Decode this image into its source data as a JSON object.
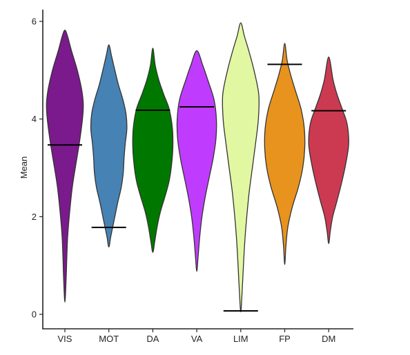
{
  "chart_data": {
    "type": "violin",
    "title": "",
    "xlabel": "",
    "ylabel": "Mean",
    "ylim": [
      -0.2,
      6.2
    ],
    "yticks": [
      0,
      2,
      4,
      6
    ],
    "grid": false,
    "legend": "none",
    "categories": [
      "VIS",
      "MOT",
      "DA",
      "VA",
      "LIM",
      "FP",
      "DM"
    ],
    "series": [
      {
        "category": "VIS",
        "color": "#7B1A8C",
        "marker": 3.47,
        "min": 0.25,
        "max": 5.82,
        "profile": [
          [
            0.25,
            0.0
          ],
          [
            0.7,
            0.06
          ],
          [
            1.2,
            0.1
          ],
          [
            1.6,
            0.14
          ],
          [
            2.1,
            0.24
          ],
          [
            2.6,
            0.37
          ],
          [
            3.0,
            0.52
          ],
          [
            3.5,
            0.72
          ],
          [
            4.0,
            0.88
          ],
          [
            4.3,
            0.92
          ],
          [
            4.6,
            0.84
          ],
          [
            5.0,
            0.62
          ],
          [
            5.4,
            0.33
          ],
          [
            5.7,
            0.13
          ],
          [
            5.82,
            0.0
          ]
        ]
      },
      {
        "category": "MOT",
        "color": "#4682B4",
        "marker": 1.78,
        "min": 1.38,
        "max": 5.52,
        "profile": [
          [
            1.38,
            0.0
          ],
          [
            1.6,
            0.1
          ],
          [
            2.0,
            0.3
          ],
          [
            2.3,
            0.45
          ],
          [
            2.6,
            0.62
          ],
          [
            2.9,
            0.72
          ],
          [
            3.2,
            0.76
          ],
          [
            3.5,
            0.82
          ],
          [
            3.8,
            0.9
          ],
          [
            4.1,
            0.86
          ],
          [
            4.4,
            0.7
          ],
          [
            4.7,
            0.48
          ],
          [
            5.0,
            0.3
          ],
          [
            5.3,
            0.13
          ],
          [
            5.52,
            0.0
          ]
        ]
      },
      {
        "category": "DA",
        "color": "#007800",
        "marker": 4.18,
        "min": 1.27,
        "max": 5.45,
        "profile": [
          [
            1.27,
            0.0
          ],
          [
            1.5,
            0.1
          ],
          [
            1.8,
            0.22
          ],
          [
            2.1,
            0.38
          ],
          [
            2.4,
            0.6
          ],
          [
            2.7,
            0.8
          ],
          [
            3.0,
            0.92
          ],
          [
            3.4,
            1.0
          ],
          [
            3.8,
            0.98
          ],
          [
            4.2,
            0.82
          ],
          [
            4.5,
            0.55
          ],
          [
            4.8,
            0.3
          ],
          [
            5.1,
            0.12
          ],
          [
            5.45,
            0.0
          ]
        ]
      },
      {
        "category": "VA",
        "color": "#BF3CFF",
        "marker": 4.25,
        "min": 0.88,
        "max": 5.4,
        "profile": [
          [
            0.88,
            0.0
          ],
          [
            1.2,
            0.07
          ],
          [
            1.6,
            0.15
          ],
          [
            2.0,
            0.26
          ],
          [
            2.4,
            0.42
          ],
          [
            2.8,
            0.62
          ],
          [
            3.2,
            0.82
          ],
          [
            3.6,
            0.96
          ],
          [
            4.0,
            0.98
          ],
          [
            4.4,
            0.86
          ],
          [
            4.8,
            0.55
          ],
          [
            5.1,
            0.3
          ],
          [
            5.4,
            0.0
          ]
        ]
      },
      {
        "category": "LIM",
        "color": "#E2F7A2",
        "marker": 0.07,
        "min": 0.05,
        "max": 5.97,
        "profile": [
          [
            0.05,
            0.0
          ],
          [
            0.4,
            0.06
          ],
          [
            0.8,
            0.11
          ],
          [
            1.2,
            0.16
          ],
          [
            1.6,
            0.22
          ],
          [
            2.0,
            0.3
          ],
          [
            2.5,
            0.42
          ],
          [
            3.0,
            0.58
          ],
          [
            3.5,
            0.74
          ],
          [
            4.0,
            0.88
          ],
          [
            4.5,
            0.9
          ],
          [
            5.0,
            0.66
          ],
          [
            5.4,
            0.4
          ],
          [
            5.7,
            0.18
          ],
          [
            5.97,
            0.0
          ]
        ]
      },
      {
        "category": "FP",
        "color": "#E8931E",
        "marker": 5.12,
        "min": 1.02,
        "max": 5.55,
        "profile": [
          [
            1.02,
            0.0
          ],
          [
            1.4,
            0.06
          ],
          [
            1.8,
            0.16
          ],
          [
            2.2,
            0.38
          ],
          [
            2.6,
            0.68
          ],
          [
            3.0,
            0.9
          ],
          [
            3.4,
            1.0
          ],
          [
            3.8,
            0.98
          ],
          [
            4.2,
            0.82
          ],
          [
            4.6,
            0.52
          ],
          [
            4.9,
            0.3
          ],
          [
            5.2,
            0.12
          ],
          [
            5.55,
            0.0
          ]
        ]
      },
      {
        "category": "DM",
        "color": "#CC3A52",
        "marker": 4.17,
        "min": 1.45,
        "max": 5.27,
        "profile": [
          [
            1.45,
            0.0
          ],
          [
            1.7,
            0.08
          ],
          [
            2.0,
            0.2
          ],
          [
            2.3,
            0.4
          ],
          [
            2.7,
            0.65
          ],
          [
            3.1,
            0.86
          ],
          [
            3.5,
            1.0
          ],
          [
            3.9,
            0.92
          ],
          [
            4.2,
            0.68
          ],
          [
            4.5,
            0.42
          ],
          [
            4.8,
            0.22
          ],
          [
            5.27,
            0.0
          ]
        ]
      }
    ]
  }
}
